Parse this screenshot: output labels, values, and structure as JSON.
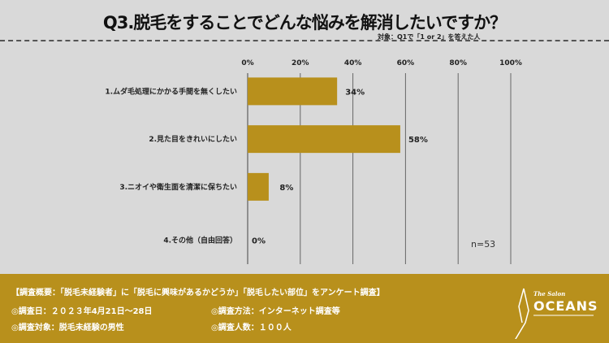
{
  "header": {
    "title": "Q3.脱毛をすることでどんな悩みを解消したいですか？",
    "target": "対象：Q1で「1 or 2」を答えた人"
  },
  "chart_data": {
    "type": "bar",
    "orientation": "horizontal",
    "title": "Q3.脱毛をすることでどんな悩みを解消したいですか？",
    "categories": [
      "1.ムダ毛処理にかかる手間を無くしたい",
      "2.見た目をきれいにしたい",
      "3.ニオイや衛生面を清潔に保ちたい",
      "4.その他（自由回答）"
    ],
    "values": [
      34,
      58,
      8,
      0
    ],
    "value_labels": [
      "34%",
      "58%",
      "8%",
      "0%"
    ],
    "xlim": [
      0,
      100
    ],
    "xticks": [
      "0%",
      "20%",
      "40%",
      "60%",
      "80%",
      "100%"
    ],
    "grid": true,
    "color": "#b8901c",
    "annotation": "n=53"
  },
  "footer": {
    "summary": "【調査概要：「脱毛未経験者」に「脱毛に興味があるかどうか」「脱毛したい部位」をアンケート調査】",
    "date": "◎調査日：２０２３年4月21日〜28日",
    "method": "◎調査方法：インターネット調査等",
    "subject": "◎調査対象：脱毛未経験の男性",
    "count": "◎調査人数：１００人"
  },
  "logo": {
    "script": "The Salon",
    "name": "OCEANS"
  }
}
